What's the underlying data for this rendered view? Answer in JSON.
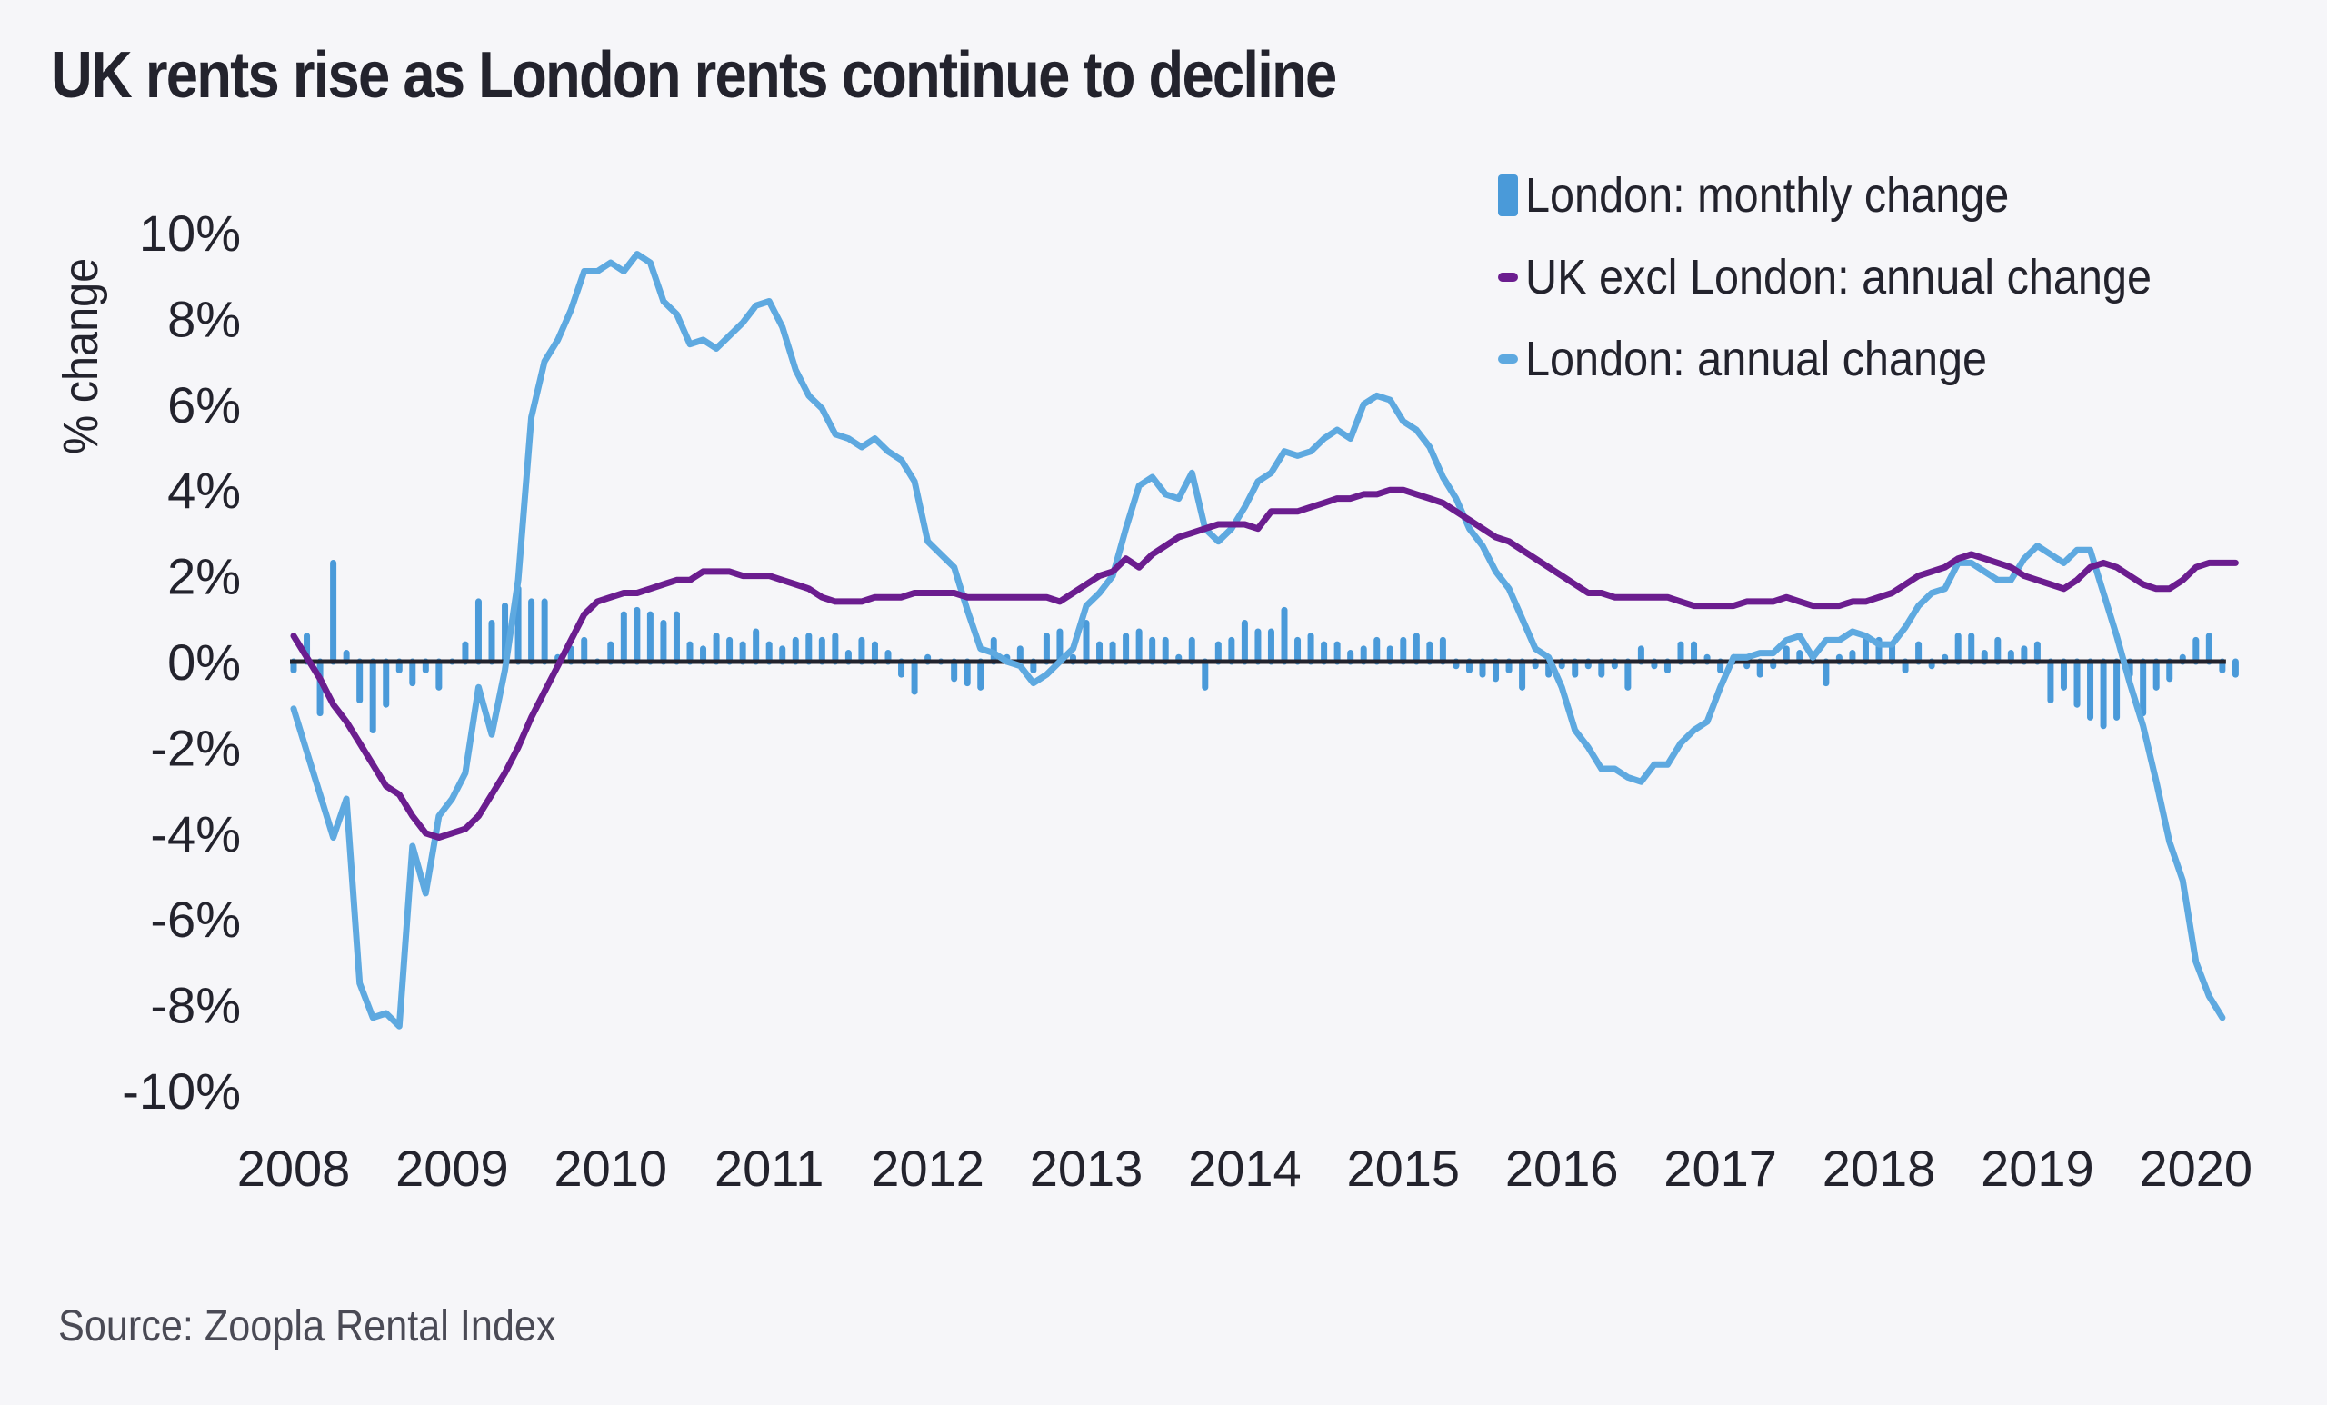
{
  "title": "UK rents rise as London rents continue to decline",
  "source": "Source: Zoopla Rental Index",
  "legend": [
    {
      "label": "London: monthly change",
      "type": "bar",
      "color": "#4a9ad9"
    },
    {
      "label": "UK excl London: annual change",
      "type": "line",
      "color": "#6b1d8f"
    },
    {
      "label": "London: annual change",
      "type": "line",
      "color": "#5ea9e0"
    }
  ],
  "chart_data": {
    "type": "line",
    "title": "UK rents rise as London rents continue to decline",
    "xlabel": "",
    "ylabel": "% change",
    "ylim": [
      -10,
      10
    ],
    "yticks": [
      "10%",
      "8%",
      "6%",
      "4%",
      "2%",
      "0%",
      "-2%",
      "-4%",
      "-6%",
      "-8%",
      "-10%"
    ],
    "ytick_values": [
      10,
      8,
      6,
      4,
      2,
      0,
      -2,
      -4,
      -6,
      -8,
      -10
    ],
    "xticks": [
      "2008",
      "2009",
      "2010",
      "2011",
      "2012",
      "2013",
      "2014",
      "2015",
      "2016",
      "2017",
      "2018",
      "2019",
      "2020"
    ],
    "x_start": "2008-01",
    "x_frequency": "monthly",
    "grid": false,
    "legend_position": "top-right",
    "zero_line": true,
    "series": [
      {
        "name": "London: monthly change",
        "type": "bar",
        "color": "#4a9ad9",
        "values": [
          -0.2,
          0.6,
          -1.2,
          2.3,
          0.2,
          -0.9,
          -1.6,
          -1.0,
          -0.2,
          -0.5,
          -0.2,
          -0.6,
          0.0,
          0.4,
          1.4,
          0.9,
          1.3,
          1.7,
          1.4,
          1.4,
          0.1,
          0.3,
          0.5,
          0.0,
          0.4,
          1.1,
          1.2,
          1.1,
          0.9,
          1.1,
          0.4,
          0.3,
          0.6,
          0.5,
          0.4,
          0.7,
          0.4,
          0.3,
          0.5,
          0.6,
          0.5,
          0.6,
          0.2,
          0.5,
          0.4,
          0.2,
          -0.3,
          -0.7,
          0.1,
          0.0,
          -0.4,
          -0.5,
          -0.6,
          0.5,
          0.1,
          0.3,
          -0.2,
          0.6,
          0.7,
          0.1,
          0.9,
          0.4,
          0.4,
          0.6,
          0.7,
          0.5,
          0.5,
          0.1,
          0.5,
          -0.6,
          0.4,
          0.5,
          0.9,
          0.7,
          0.7,
          1.2,
          0.5,
          0.6,
          0.4,
          0.4,
          0.2,
          0.3,
          0.5,
          0.3,
          0.5,
          0.6,
          0.4,
          0.5,
          -0.1,
          -0.2,
          -0.3,
          -0.4,
          -0.2,
          -0.6,
          -0.1,
          -0.3,
          -0.1,
          -0.3,
          -0.1,
          -0.3,
          -0.1,
          -0.6,
          0.3,
          -0.1,
          -0.2,
          0.4,
          0.4,
          0.1,
          -0.2,
          0.1,
          -0.1,
          -0.3,
          -0.1,
          0.3,
          0.2,
          0.1,
          -0.5,
          0.1,
          0.2,
          0.5,
          0.5,
          0.4,
          -0.2,
          0.4,
          -0.1,
          0.1,
          0.6,
          0.6,
          0.2,
          0.5,
          0.2,
          0.3,
          0.4,
          -0.9,
          -0.6,
          -1.0,
          -1.3,
          -1.5,
          -1.3,
          -0.3,
          -1.2,
          -0.6,
          -0.4,
          0.1,
          0.5,
          0.6,
          -0.2,
          -0.3
        ]
      },
      {
        "name": "UK excl London: annual change",
        "type": "line",
        "color": "#6b1d8f",
        "values": [
          0.6,
          0.1,
          -0.4,
          -1.0,
          -1.4,
          -1.9,
          -2.4,
          -2.9,
          -3.1,
          -3.6,
          -4.0,
          -4.1,
          -4.0,
          -3.9,
          -3.6,
          -3.1,
          -2.6,
          -2.0,
          -1.3,
          -0.7,
          -0.1,
          0.5,
          1.1,
          1.4,
          1.5,
          1.6,
          1.6,
          1.7,
          1.8,
          1.9,
          1.9,
          2.1,
          2.1,
          2.1,
          2.0,
          2.0,
          2.0,
          1.9,
          1.8,
          1.7,
          1.5,
          1.4,
          1.4,
          1.4,
          1.5,
          1.5,
          1.5,
          1.6,
          1.6,
          1.6,
          1.6,
          1.5,
          1.5,
          1.5,
          1.5,
          1.5,
          1.5,
          1.5,
          1.4,
          1.6,
          1.8,
          2.0,
          2.1,
          2.4,
          2.2,
          2.5,
          2.7,
          2.9,
          3.0,
          3.1,
          3.2,
          3.2,
          3.2,
          3.1,
          3.5,
          3.5,
          3.5,
          3.6,
          3.7,
          3.8,
          3.8,
          3.9,
          3.9,
          4.0,
          4.0,
          3.9,
          3.8,
          3.7,
          3.5,
          3.3,
          3.1,
          2.9,
          2.8,
          2.6,
          2.4,
          2.2,
          2.0,
          1.8,
          1.6,
          1.6,
          1.5,
          1.5,
          1.5,
          1.5,
          1.5,
          1.4,
          1.3,
          1.3,
          1.3,
          1.3,
          1.4,
          1.4,
          1.4,
          1.5,
          1.4,
          1.3,
          1.3,
          1.3,
          1.4,
          1.4,
          1.5,
          1.6,
          1.8,
          2.0,
          2.1,
          2.2,
          2.4,
          2.5,
          2.4,
          2.3,
          2.2,
          2.0,
          1.9,
          1.8,
          1.7,
          1.9,
          2.2,
          2.3,
          2.2,
          2.0,
          1.8,
          1.7,
          1.7,
          1.9,
          2.2,
          2.3,
          2.3,
          2.3
        ]
      },
      {
        "name": "London: annual change",
        "type": "line",
        "color": "#5ea9e0",
        "values": [
          -1.1,
          -2.1,
          -3.1,
          -4.1,
          -3.2,
          -7.5,
          -8.3,
          -8.2,
          -8.5,
          -4.3,
          -5.4,
          -3.6,
          -3.2,
          -2.6,
          -0.6,
          -1.7,
          -0.2,
          1.9,
          5.7,
          7.0,
          7.5,
          8.2,
          9.1,
          9.1,
          9.3,
          9.1,
          9.5,
          9.3,
          8.4,
          8.1,
          7.4,
          7.5,
          7.3,
          7.6,
          7.9,
          8.3,
          8.4,
          7.8,
          6.8,
          6.2,
          5.9,
          5.3,
          5.2,
          5.0,
          5.2,
          4.9,
          4.7,
          4.2,
          2.8,
          2.5,
          2.2,
          1.2,
          0.3,
          0.2,
          0.0,
          -0.1,
          -0.5,
          -0.3,
          0.0,
          0.3,
          1.3,
          1.6,
          2.0,
          3.1,
          4.1,
          4.3,
          3.9,
          3.8,
          4.4,
          3.1,
          2.8,
          3.1,
          3.6,
          4.2,
          4.4,
          4.9,
          4.8,
          4.9,
          5.2,
          5.4,
          5.2,
          6.0,
          6.2,
          6.1,
          5.6,
          5.4,
          5.0,
          4.3,
          3.8,
          3.1,
          2.7,
          2.1,
          1.7,
          1.0,
          0.3,
          0.1,
          -0.6,
          -1.6,
          -2.0,
          -2.5,
          -2.5,
          -2.7,
          -2.8,
          -2.4,
          -2.4,
          -1.9,
          -1.6,
          -1.4,
          -0.6,
          0.1,
          0.1,
          0.2,
          0.2,
          0.5,
          0.6,
          0.1,
          0.5,
          0.5,
          0.7,
          0.6,
          0.4,
          0.4,
          0.8,
          1.3,
          1.6,
          1.7,
          2.3,
          2.3,
          2.1,
          1.9,
          1.9,
          2.4,
          2.7,
          2.5,
          2.3,
          2.6,
          2.6,
          1.6,
          0.6,
          -0.5,
          -1.5,
          -2.8,
          -4.2,
          -5.1,
          -7.0,
          -7.8,
          -8.3
        ]
      }
    ]
  }
}
